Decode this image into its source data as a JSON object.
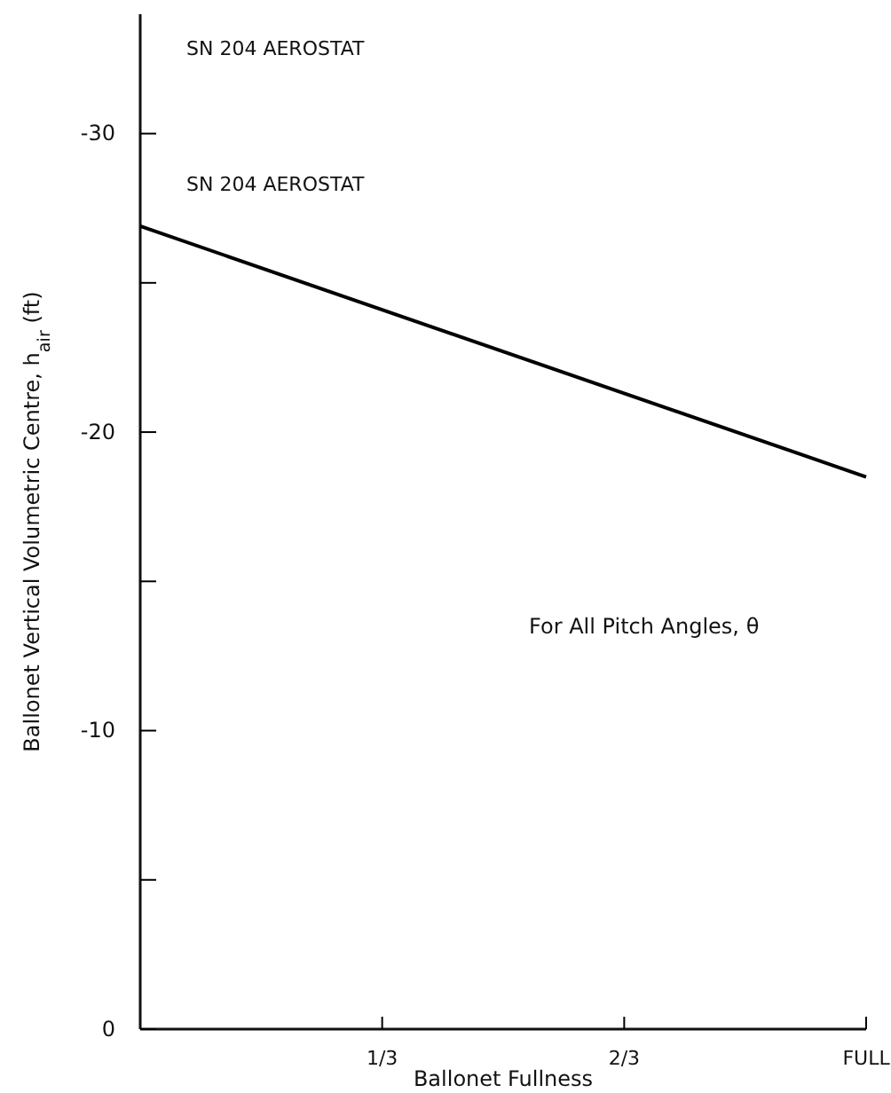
{
  "chart_data": {
    "type": "line",
    "xlabel": "Ballonet Fullness",
    "ylabel": "Ballonet Vertical Volumetric Centre, h$_{air}$ (ft)",
    "annotations": [
      "SN 204 AEROSTAT",
      "For All Pitch Angles, θ"
    ],
    "x": [
      0,
      1
    ],
    "series": [
      {
        "name": "SN 204 AEROSTAT",
        "color": "#000000",
        "values": [
          -26.9,
          -18.5
        ]
      }
    ],
    "xlim": [
      0,
      1
    ],
    "xticks": [
      {
        "value": 0.3333,
        "label": "1/3"
      },
      {
        "value": 0.6667,
        "label": "2/3"
      },
      {
        "value": 1,
        "label": "FULL"
      }
    ],
    "ylim": [
      0,
      -34
    ],
    "yticks": [
      0,
      {
        "value": -5,
        "label": null
      },
      -10,
      {
        "value": -15,
        "label": null
      },
      -20,
      {
        "value": -25,
        "label": null
      },
      -30
    ],
    "grid": false,
    "legend": false,
    "marker": "none",
    "line_style": "solid"
  }
}
